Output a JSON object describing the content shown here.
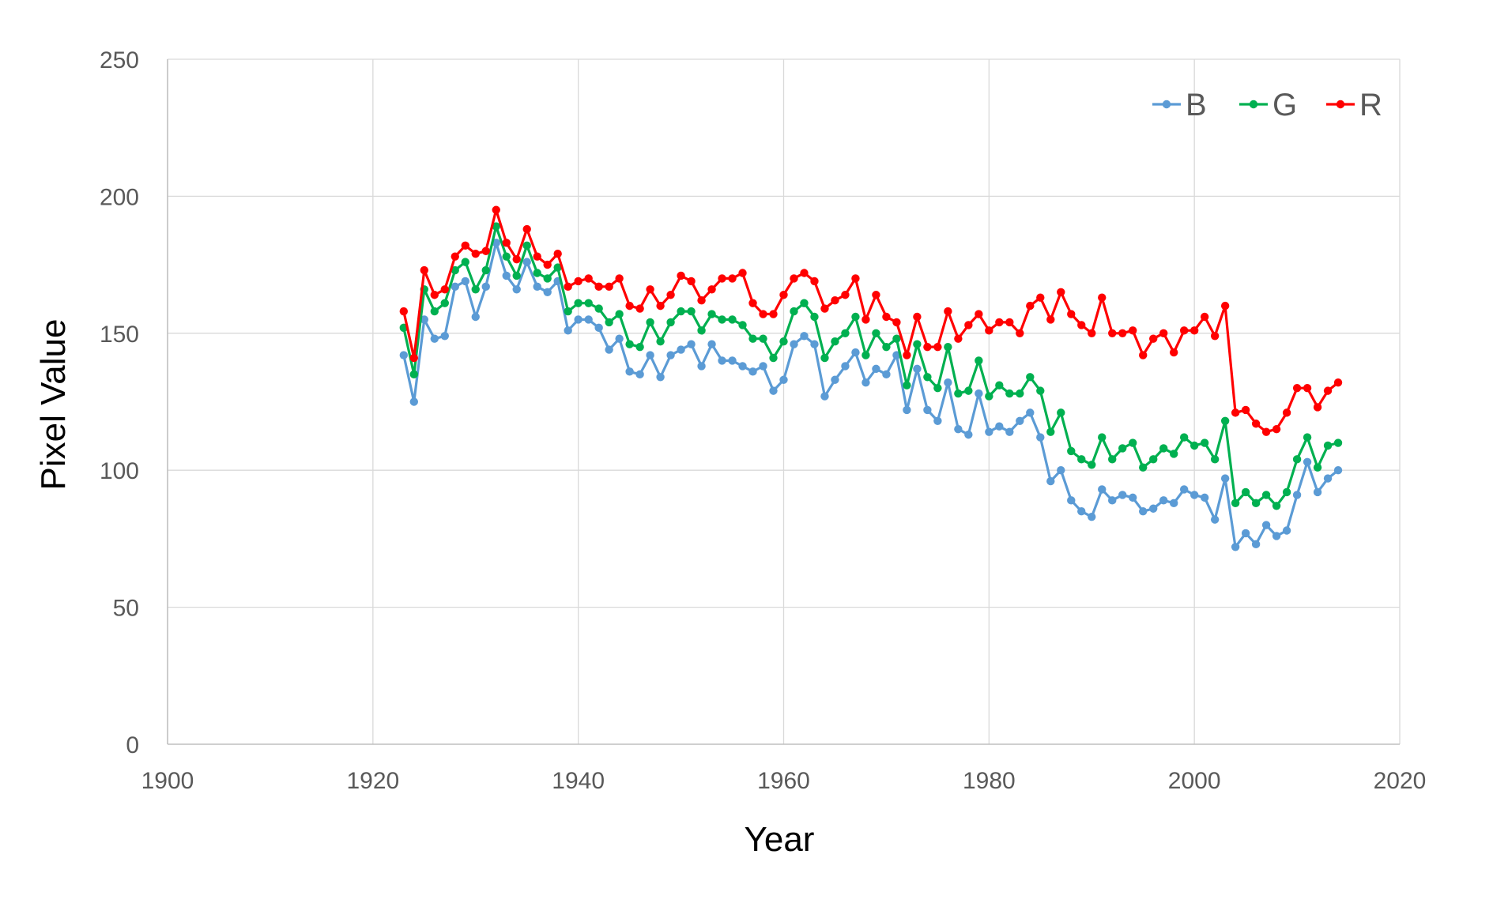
{
  "chart_data": {
    "type": "line",
    "title": "",
    "xlabel": "Year",
    "ylabel": "Pixel Value",
    "xlim": [
      1900,
      2020
    ],
    "ylim": [
      0,
      250
    ],
    "x_ticks": [
      "1900",
      "1920",
      "1940",
      "1960",
      "1980",
      "2000",
      "2020"
    ],
    "y_ticks": [
      "0",
      "50",
      "100",
      "150",
      "200",
      "250"
    ],
    "grid": true,
    "legend_position": "top-right",
    "x": [
      1923,
      1924,
      1925,
      1926,
      1927,
      1928,
      1929,
      1930,
      1931,
      1932,
      1933,
      1934,
      1935,
      1936,
      1937,
      1938,
      1939,
      1940,
      1941,
      1942,
      1943,
      1944,
      1945,
      1946,
      1947,
      1948,
      1949,
      1950,
      1951,
      1952,
      1953,
      1954,
      1955,
      1956,
      1957,
      1958,
      1959,
      1960,
      1961,
      1962,
      1963,
      1964,
      1965,
      1966,
      1967,
      1968,
      1969,
      1970,
      1971,
      1972,
      1973,
      1974,
      1975,
      1976,
      1977,
      1978,
      1979,
      1980,
      1981,
      1982,
      1983,
      1984,
      1985,
      1986,
      1987,
      1988,
      1989,
      1990,
      1991,
      1992,
      1993,
      1994,
      1995,
      1996,
      1997,
      1998,
      1999,
      2000,
      2001,
      2002,
      2003,
      2004,
      2005,
      2006,
      2007,
      2008,
      2009,
      2010,
      2011,
      2012,
      2013,
      2014
    ],
    "series": [
      {
        "name": "B",
        "color": "#5b9bd5",
        "values": [
          142,
          125,
          155,
          148,
          149,
          167,
          169,
          156,
          167,
          183,
          171,
          166,
          176,
          167,
          165,
          169,
          151,
          155,
          155,
          152,
          144,
          148,
          136,
          135,
          142,
          134,
          142,
          144,
          146,
          138,
          146,
          140,
          140,
          138,
          136,
          138,
          129,
          133,
          146,
          149,
          146,
          127,
          133,
          138,
          143,
          132,
          137,
          135,
          142,
          122,
          137,
          122,
          118,
          132,
          115,
          113,
          128,
          114,
          116,
          114,
          118,
          121,
          112,
          96,
          100,
          89,
          85,
          83,
          93,
          89,
          91,
          90,
          85,
          86,
          89,
          88,
          93,
          91,
          90,
          82,
          97,
          72,
          77,
          73,
          80,
          76,
          78,
          91,
          103,
          92,
          97,
          100
        ]
      },
      {
        "name": "G",
        "color": "#00b050",
        "values": [
          152,
          135,
          166,
          158,
          161,
          173,
          176,
          166,
          173,
          189,
          178,
          171,
          182,
          172,
          170,
          174,
          158,
          161,
          161,
          159,
          154,
          157,
          146,
          145,
          154,
          147,
          154,
          158,
          158,
          151,
          157,
          155,
          155,
          153,
          148,
          148,
          141,
          147,
          158,
          161,
          156,
          141,
          147,
          150,
          156,
          142,
          150,
          145,
          148,
          131,
          146,
          134,
          130,
          145,
          128,
          129,
          140,
          127,
          131,
          128,
          128,
          134,
          129,
          114,
          121,
          107,
          104,
          102,
          112,
          104,
          108,
          110,
          101,
          104,
          108,
          106,
          112,
          109,
          110,
          104,
          118,
          88,
          92,
          88,
          91,
          87,
          92,
          104,
          112,
          101,
          109,
          110
        ]
      },
      {
        "name": "R",
        "color": "#ff0000",
        "values": [
          158,
          141,
          173,
          164,
          166,
          178,
          182,
          179,
          180,
          195,
          183,
          177,
          188,
          178,
          175,
          179,
          167,
          169,
          170,
          167,
          167,
          170,
          160,
          159,
          166,
          160,
          164,
          171,
          169,
          162,
          166,
          170,
          170,
          172,
          161,
          157,
          157,
          164,
          170,
          172,
          169,
          159,
          162,
          164,
          170,
          155,
          164,
          156,
          154,
          142,
          156,
          145,
          145,
          158,
          148,
          153,
          157,
          151,
          154,
          154,
          150,
          160,
          163,
          155,
          165,
          157,
          153,
          150,
          163,
          150,
          150,
          151,
          142,
          148,
          150,
          143,
          151,
          151,
          156,
          149,
          160,
          121,
          122,
          117,
          114,
          115,
          121,
          130,
          130,
          123,
          129,
          132
        ]
      }
    ]
  }
}
